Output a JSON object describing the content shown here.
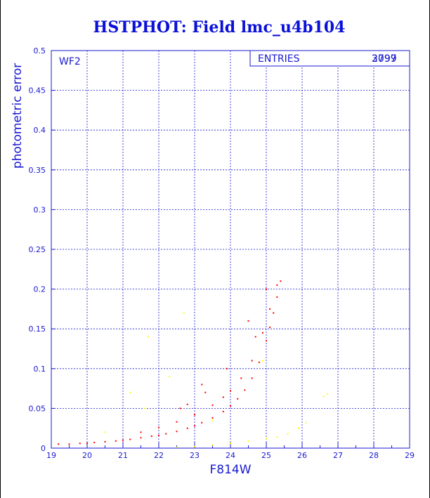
{
  "chart_data": {
    "type": "scatter",
    "title": "HSTPHOT: Field lmc_u4b104",
    "xlabel": "F814W",
    "ylabel": "photometric error",
    "xlim": [
      19,
      29
    ],
    "ylim": [
      0,
      0.5
    ],
    "xticks": [
      "19",
      "20",
      "21",
      "22",
      "23",
      "24",
      "25",
      "26",
      "27",
      "28",
      "29"
    ],
    "yticks": [
      "0",
      "0.05",
      "0.1",
      "0.15",
      "0.2",
      "0.25",
      "0.3",
      "0.35",
      "0.4",
      "0.45",
      "0.5"
    ],
    "grid": true,
    "annotations": {
      "panel": "WF2",
      "entries_label": "ENTRIES",
      "entries_values": [
        "3797",
        "2099"
      ]
    },
    "series": [
      {
        "color": "#ff0000",
        "points": [
          [
            19.2,
            0.005
          ],
          [
            19.5,
            0.005
          ],
          [
            19.8,
            0.006
          ],
          [
            20.0,
            0.006
          ],
          [
            20.2,
            0.007
          ],
          [
            20.5,
            0.008
          ],
          [
            20.8,
            0.009
          ],
          [
            21.0,
            0.01
          ],
          [
            21.2,
            0.011
          ],
          [
            21.5,
            0.013
          ],
          [
            21.8,
            0.015
          ],
          [
            22.0,
            0.016
          ],
          [
            22.2,
            0.018
          ],
          [
            22.5,
            0.021
          ],
          [
            22.8,
            0.025
          ],
          [
            23.0,
            0.028
          ],
          [
            23.2,
            0.032
          ],
          [
            23.5,
            0.038
          ],
          [
            23.8,
            0.046
          ],
          [
            24.0,
            0.053
          ],
          [
            24.2,
            0.062
          ],
          [
            24.4,
            0.073
          ],
          [
            24.6,
            0.088
          ],
          [
            24.8,
            0.108
          ],
          [
            25.0,
            0.135
          ],
          [
            25.1,
            0.152
          ],
          [
            25.2,
            0.17
          ],
          [
            25.3,
            0.19
          ],
          [
            25.4,
            0.21
          ],
          [
            21.5,
            0.02
          ],
          [
            22.0,
            0.026
          ],
          [
            22.5,
            0.033
          ],
          [
            23.0,
            0.042
          ],
          [
            23.5,
            0.054
          ],
          [
            23.8,
            0.064
          ],
          [
            24.0,
            0.072
          ],
          [
            24.3,
            0.088
          ],
          [
            24.6,
            0.11
          ],
          [
            24.9,
            0.145
          ],
          [
            25.1,
            0.175
          ],
          [
            25.3,
            0.205
          ],
          [
            22.8,
            0.055
          ],
          [
            23.3,
            0.07
          ],
          [
            23.9,
            0.1
          ],
          [
            24.5,
            0.16
          ],
          [
            24.7,
            0.14
          ],
          [
            25.0,
            0.2
          ],
          [
            23.2,
            0.08
          ],
          [
            22.6,
            0.05
          ]
        ]
      },
      {
        "color": "#ffff00",
        "points": [
          [
            22.5,
            0.001
          ],
          [
            23.0,
            0.002
          ],
          [
            23.5,
            0.004
          ],
          [
            24.0,
            0.006
          ],
          [
            24.5,
            0.009
          ],
          [
            25.0,
            0.012
          ],
          [
            25.3,
            0.014
          ],
          [
            25.6,
            0.018
          ],
          [
            25.9,
            0.025
          ],
          [
            26.1,
            0.032
          ],
          [
            26.6,
            0.065
          ],
          [
            26.7,
            0.068
          ],
          [
            21.7,
            0.14
          ],
          [
            22.7,
            0.17
          ],
          [
            21.2,
            0.07
          ],
          [
            22.3,
            0.09
          ],
          [
            24.9,
            0.11
          ],
          [
            21.6,
            0.05
          ],
          [
            23.5,
            0.035
          ],
          [
            20.5,
            0.02
          ]
        ]
      }
    ]
  }
}
